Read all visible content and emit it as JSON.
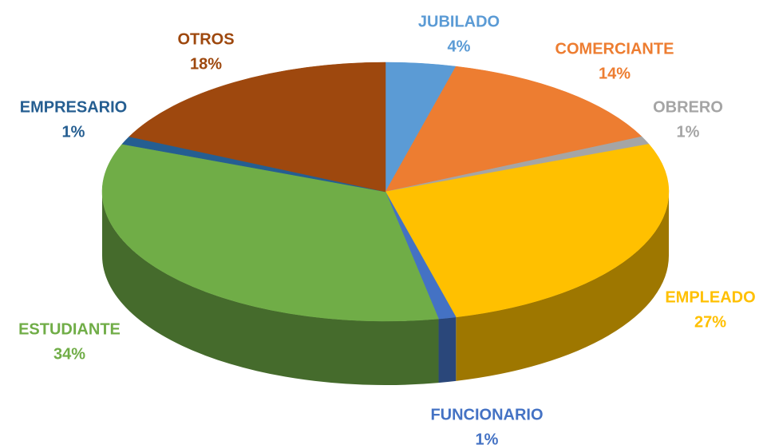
{
  "chart_data": {
    "type": "pie",
    "categories": [
      "JUBILADO",
      "COMERCIANTE",
      "OBRERO",
      "EMPLEADO",
      "FUNCIONARIO",
      "ESTUDIANTE",
      "EMPRESARIO",
      "OTROS"
    ],
    "values": [
      4,
      14,
      1,
      27,
      1,
      34,
      1,
      18
    ],
    "value_labels": [
      "4%",
      "14%",
      "1%",
      "27%",
      "1%",
      "34%",
      "1%",
      "18%"
    ],
    "colors": [
      "#5B9BD5",
      "#ED7D31",
      "#A5A5A5",
      "#FFC000",
      "#4472C4",
      "#70AD47",
      "#255E91",
      "#9E480E"
    ]
  }
}
